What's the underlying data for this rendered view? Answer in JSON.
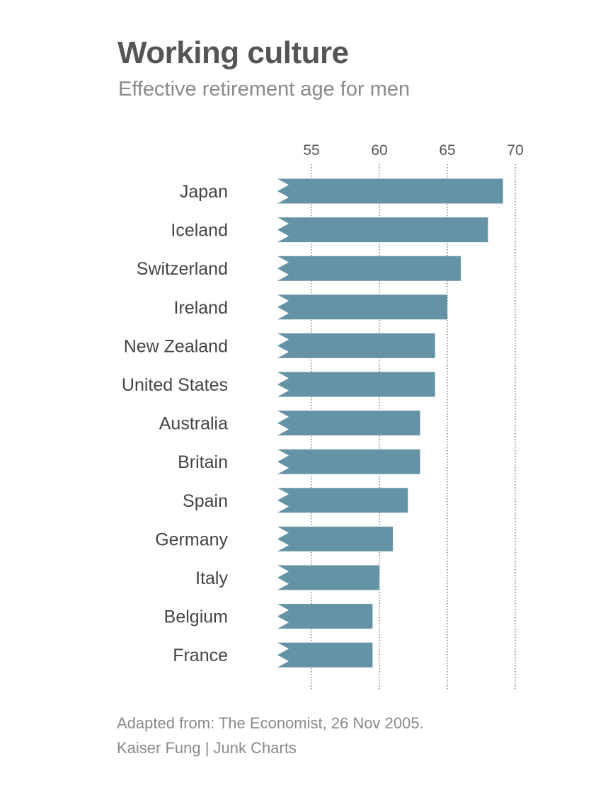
{
  "header": {
    "title": "Working culture",
    "subtitle": "Effective retirement age for men"
  },
  "footer": {
    "source": "Adapted from: The Economist, 26 Nov 2005.",
    "credit": "Kaiser Fung | Junk Charts"
  },
  "chart_data": {
    "type": "bar",
    "orientation": "horizontal",
    "title": "Working culture",
    "subtitle": "Effective retirement age for men",
    "categories": [
      "Japan",
      "Iceland",
      "Switzerland",
      "Ireland",
      "New Zealand",
      "United States",
      "Australia",
      "Britain",
      "Spain",
      "Germany",
      "Italy",
      "Belgium",
      "France"
    ],
    "values": [
      69.1,
      68.0,
      66.0,
      65.0,
      64.1,
      64.1,
      63.0,
      63.0,
      62.1,
      61.0,
      60.0,
      59.5,
      59.5
    ],
    "xticks": [
      55,
      60,
      65,
      70
    ],
    "xlim": [
      52.5,
      70
    ],
    "axis_broken": true,
    "grid": "vertical dotted",
    "bar_color": "#6593a6"
  }
}
